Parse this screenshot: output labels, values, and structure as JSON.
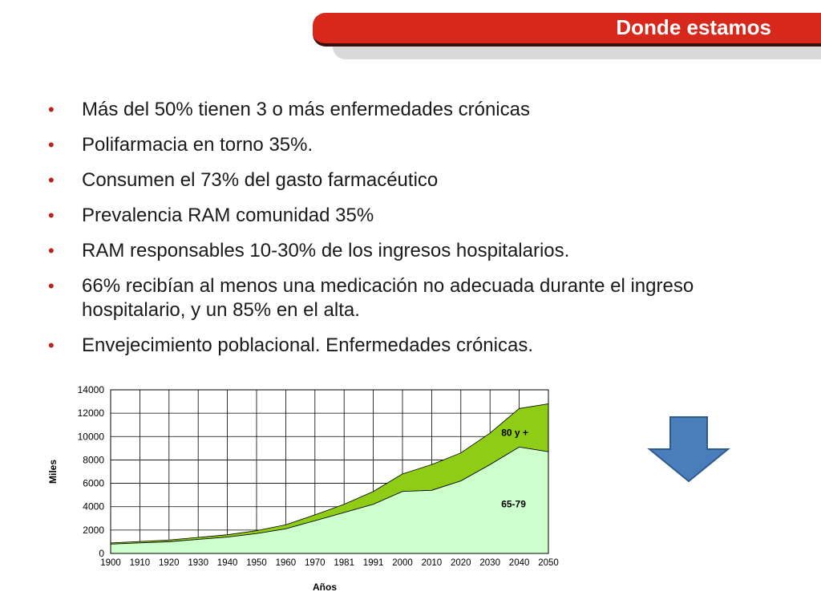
{
  "header": {
    "title": "Donde estamos"
  },
  "bullets": [
    "Más del 50% tienen 3 o más enfermedades crónicas",
    "Polifarmacia  en torno 35%.",
    "Consumen el 73% del gasto farmacéutico",
    "Prevalencia RAM comunidad 35%",
    "RAM responsables 10-30% de los ingresos hospitalarios.",
    "66% recibían al menos una medicación no adecuada durante el ingreso hospitalario, y un 85% en el alta.",
    "Envejecimiento poblacional. Enfermedades crónicas."
  ],
  "colors": {
    "accent": "#d8281c",
    "area_65_79": "#ccffcc",
    "area_80": "#8fcc16",
    "arrow": "#4a7ebb"
  },
  "chart_data": {
    "type": "area",
    "stacked": true,
    "xlabel": "Años",
    "ylabel": "Miles",
    "ylim": [
      0,
      14000
    ],
    "yticks": [
      0,
      2000,
      4000,
      6000,
      8000,
      10000,
      12000,
      14000
    ],
    "x": [
      "1900",
      "1910",
      "1920",
      "1930",
      "1940",
      "1950",
      "1960",
      "1970",
      "1981",
      "1991",
      "2000",
      "2010",
      "2020",
      "2030",
      "2040",
      "2050"
    ],
    "series": [
      {
        "name": "65-79",
        "values": [
          800,
          900,
          1000,
          1200,
          1400,
          1700,
          2100,
          2800,
          3500,
          4200,
          5300,
          5400,
          6200,
          7600,
          9100,
          8700
        ]
      },
      {
        "name": "80 y +",
        "values": [
          100,
          120,
          150,
          170,
          200,
          250,
          350,
          500,
          700,
          1100,
          1500,
          2200,
          2400,
          2700,
          3300,
          4100
        ]
      }
    ],
    "grid": true
  },
  "icons": {
    "arrow": "down-arrow-icon"
  }
}
